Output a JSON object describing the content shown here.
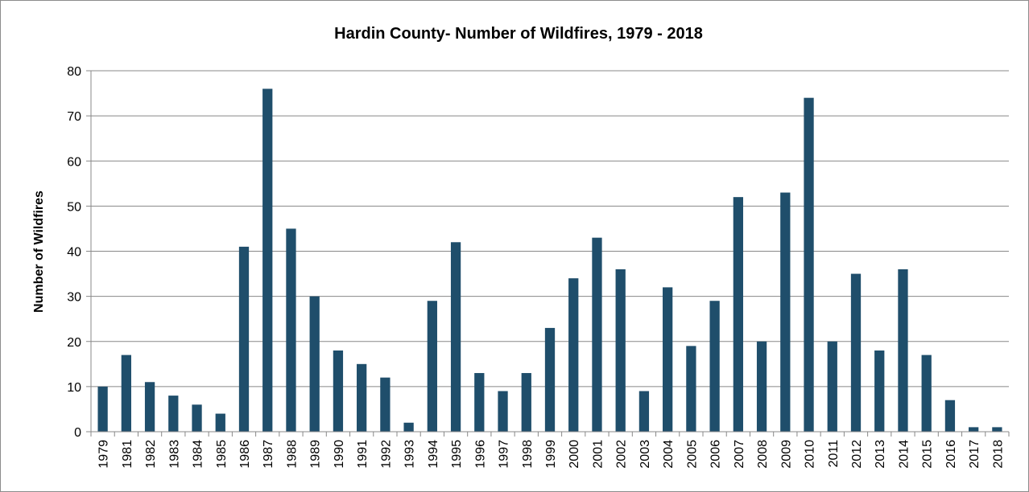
{
  "chart_data": {
    "type": "bar",
    "title": "Hardin County- Number of Wildfires, 1979 - 2018",
    "xlabel": "",
    "ylabel": "Number of Wildfires",
    "ylim": [
      0,
      80
    ],
    "yticks": [
      0,
      10,
      20,
      30,
      40,
      50,
      60,
      70,
      80
    ],
    "grid": true,
    "legend": "none",
    "bar_color": "#1f4e6b",
    "categories": [
      "1979",
      "1981",
      "1982",
      "1983",
      "1984",
      "1985",
      "1986",
      "1987",
      "1988",
      "1989",
      "1990",
      "1991",
      "1992",
      "1993",
      "1994",
      "1995",
      "1996",
      "1997",
      "1998",
      "1999",
      "2000",
      "2001",
      "2002",
      "2003",
      "2004",
      "2005",
      "2006",
      "2007",
      "2008",
      "2009",
      "2010",
      "2011",
      "2012",
      "2013",
      "2014",
      "2015",
      "2016",
      "2017",
      "2018"
    ],
    "values": [
      10,
      17,
      11,
      8,
      6,
      4,
      41,
      76,
      45,
      30,
      18,
      15,
      12,
      2,
      29,
      42,
      13,
      9,
      13,
      23,
      34,
      43,
      36,
      9,
      32,
      19,
      29,
      52,
      20,
      53,
      74,
      20,
      35,
      18,
      36,
      17,
      7,
      1,
      1
    ]
  }
}
